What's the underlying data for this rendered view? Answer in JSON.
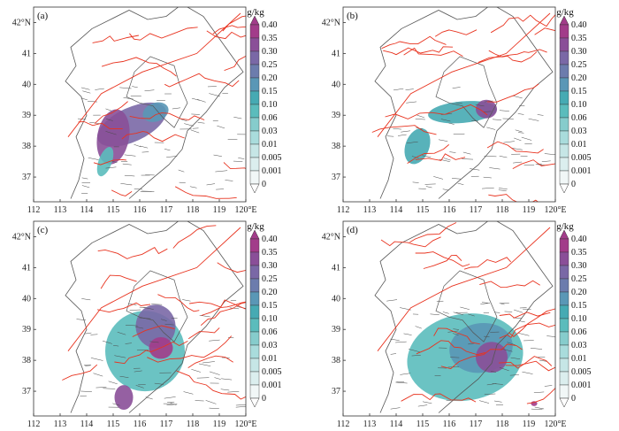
{
  "figure": {
    "panels": [
      {
        "label": "(a)",
        "regions": [
          {
            "lon": 115.7,
            "lat": 38.7,
            "rx": 1.4,
            "ry": 0.55,
            "rot": -25,
            "level": 0.3
          },
          {
            "lon": 115.0,
            "lat": 38.3,
            "rx": 0.6,
            "ry": 0.9,
            "rot": 10,
            "level": 0.35
          },
          {
            "lon": 114.7,
            "lat": 37.5,
            "rx": 0.25,
            "ry": 0.5,
            "rot": 20,
            "level": 0.1
          },
          {
            "lon": 116.6,
            "lat": 39.1,
            "rx": 0.5,
            "ry": 0.3,
            "rot": -20,
            "level": 0.2
          }
        ]
      },
      {
        "label": "(b)",
        "regions": [
          {
            "lon": 116.5,
            "lat": 39.1,
            "rx": 1.3,
            "ry": 0.35,
            "rot": -5,
            "level": 0.15
          },
          {
            "lon": 117.4,
            "lat": 39.2,
            "rx": 0.4,
            "ry": 0.3,
            "rot": 0,
            "level": 0.35
          },
          {
            "lon": 114.8,
            "lat": 38.0,
            "rx": 0.45,
            "ry": 0.6,
            "rot": 20,
            "level": 0.15
          }
        ]
      },
      {
        "label": "(c)",
        "regions": [
          {
            "lon": 116.2,
            "lat": 38.3,
            "rx": 1.5,
            "ry": 1.3,
            "rot": 0,
            "level": 0.1
          },
          {
            "lon": 116.6,
            "lat": 39.1,
            "rx": 0.75,
            "ry": 0.7,
            "rot": 0,
            "level": 0.3
          },
          {
            "lon": 116.8,
            "lat": 38.4,
            "rx": 0.45,
            "ry": 0.35,
            "rot": 0,
            "level": 0.4
          },
          {
            "lon": 115.4,
            "lat": 36.8,
            "rx": 0.35,
            "ry": 0.4,
            "rot": 0,
            "level": 0.35
          }
        ]
      },
      {
        "label": "(d)",
        "regions": [
          {
            "lon": 116.6,
            "lat": 38.1,
            "rx": 2.2,
            "ry": 1.4,
            "rot": -10,
            "level": 0.1
          },
          {
            "lon": 117.2,
            "lat": 38.4,
            "rx": 1.2,
            "ry": 0.8,
            "rot": -10,
            "level": 0.2
          },
          {
            "lon": 117.6,
            "lat": 38.1,
            "rx": 0.6,
            "ry": 0.5,
            "rot": 0,
            "level": 0.35
          },
          {
            "lon": 119.2,
            "lat": 36.6,
            "rx": 0.12,
            "ry": 0.08,
            "rot": 0,
            "level": 0.4
          }
        ]
      }
    ],
    "lon_ticks": [
      112,
      113,
      114,
      115,
      116,
      117,
      118,
      119,
      120
    ],
    "lon_tick_labels": [
      "112",
      "113",
      "114",
      "115",
      "116",
      "117",
      "118",
      "119",
      "120°E"
    ],
    "lat_ticks": [
      37,
      38,
      39,
      40,
      41,
      42
    ],
    "lat_tick_labels": [
      "37",
      "38",
      "39",
      "40",
      "41",
      "42°N"
    ],
    "extent": {
      "lon_min": 112,
      "lon_max": 120,
      "lat_min": 36.2,
      "lat_max": 42.5
    },
    "colorbar": {
      "unit": "g/kg",
      "levels": [
        "0",
        "0.001",
        "0.005",
        "0.01",
        "0.03",
        "0.06",
        "0.10",
        "0.15",
        "0.20",
        "0.25",
        "0.30",
        "0.35",
        "0.40"
      ],
      "colors": [
        "#ffffff",
        "#f1f7f7",
        "#dbeeee",
        "#c6e6e6",
        "#a9dcdc",
        "#86cccc",
        "#5bbcbc",
        "#46aab3",
        "#5a97b6",
        "#6c7cad",
        "#7a68a6",
        "#8a4f98",
        "#a23c8a"
      ]
    },
    "colors": {
      "contour": "#e8331f",
      "wind": "#4b4b4b",
      "boundary": "#555555"
    }
  }
}
